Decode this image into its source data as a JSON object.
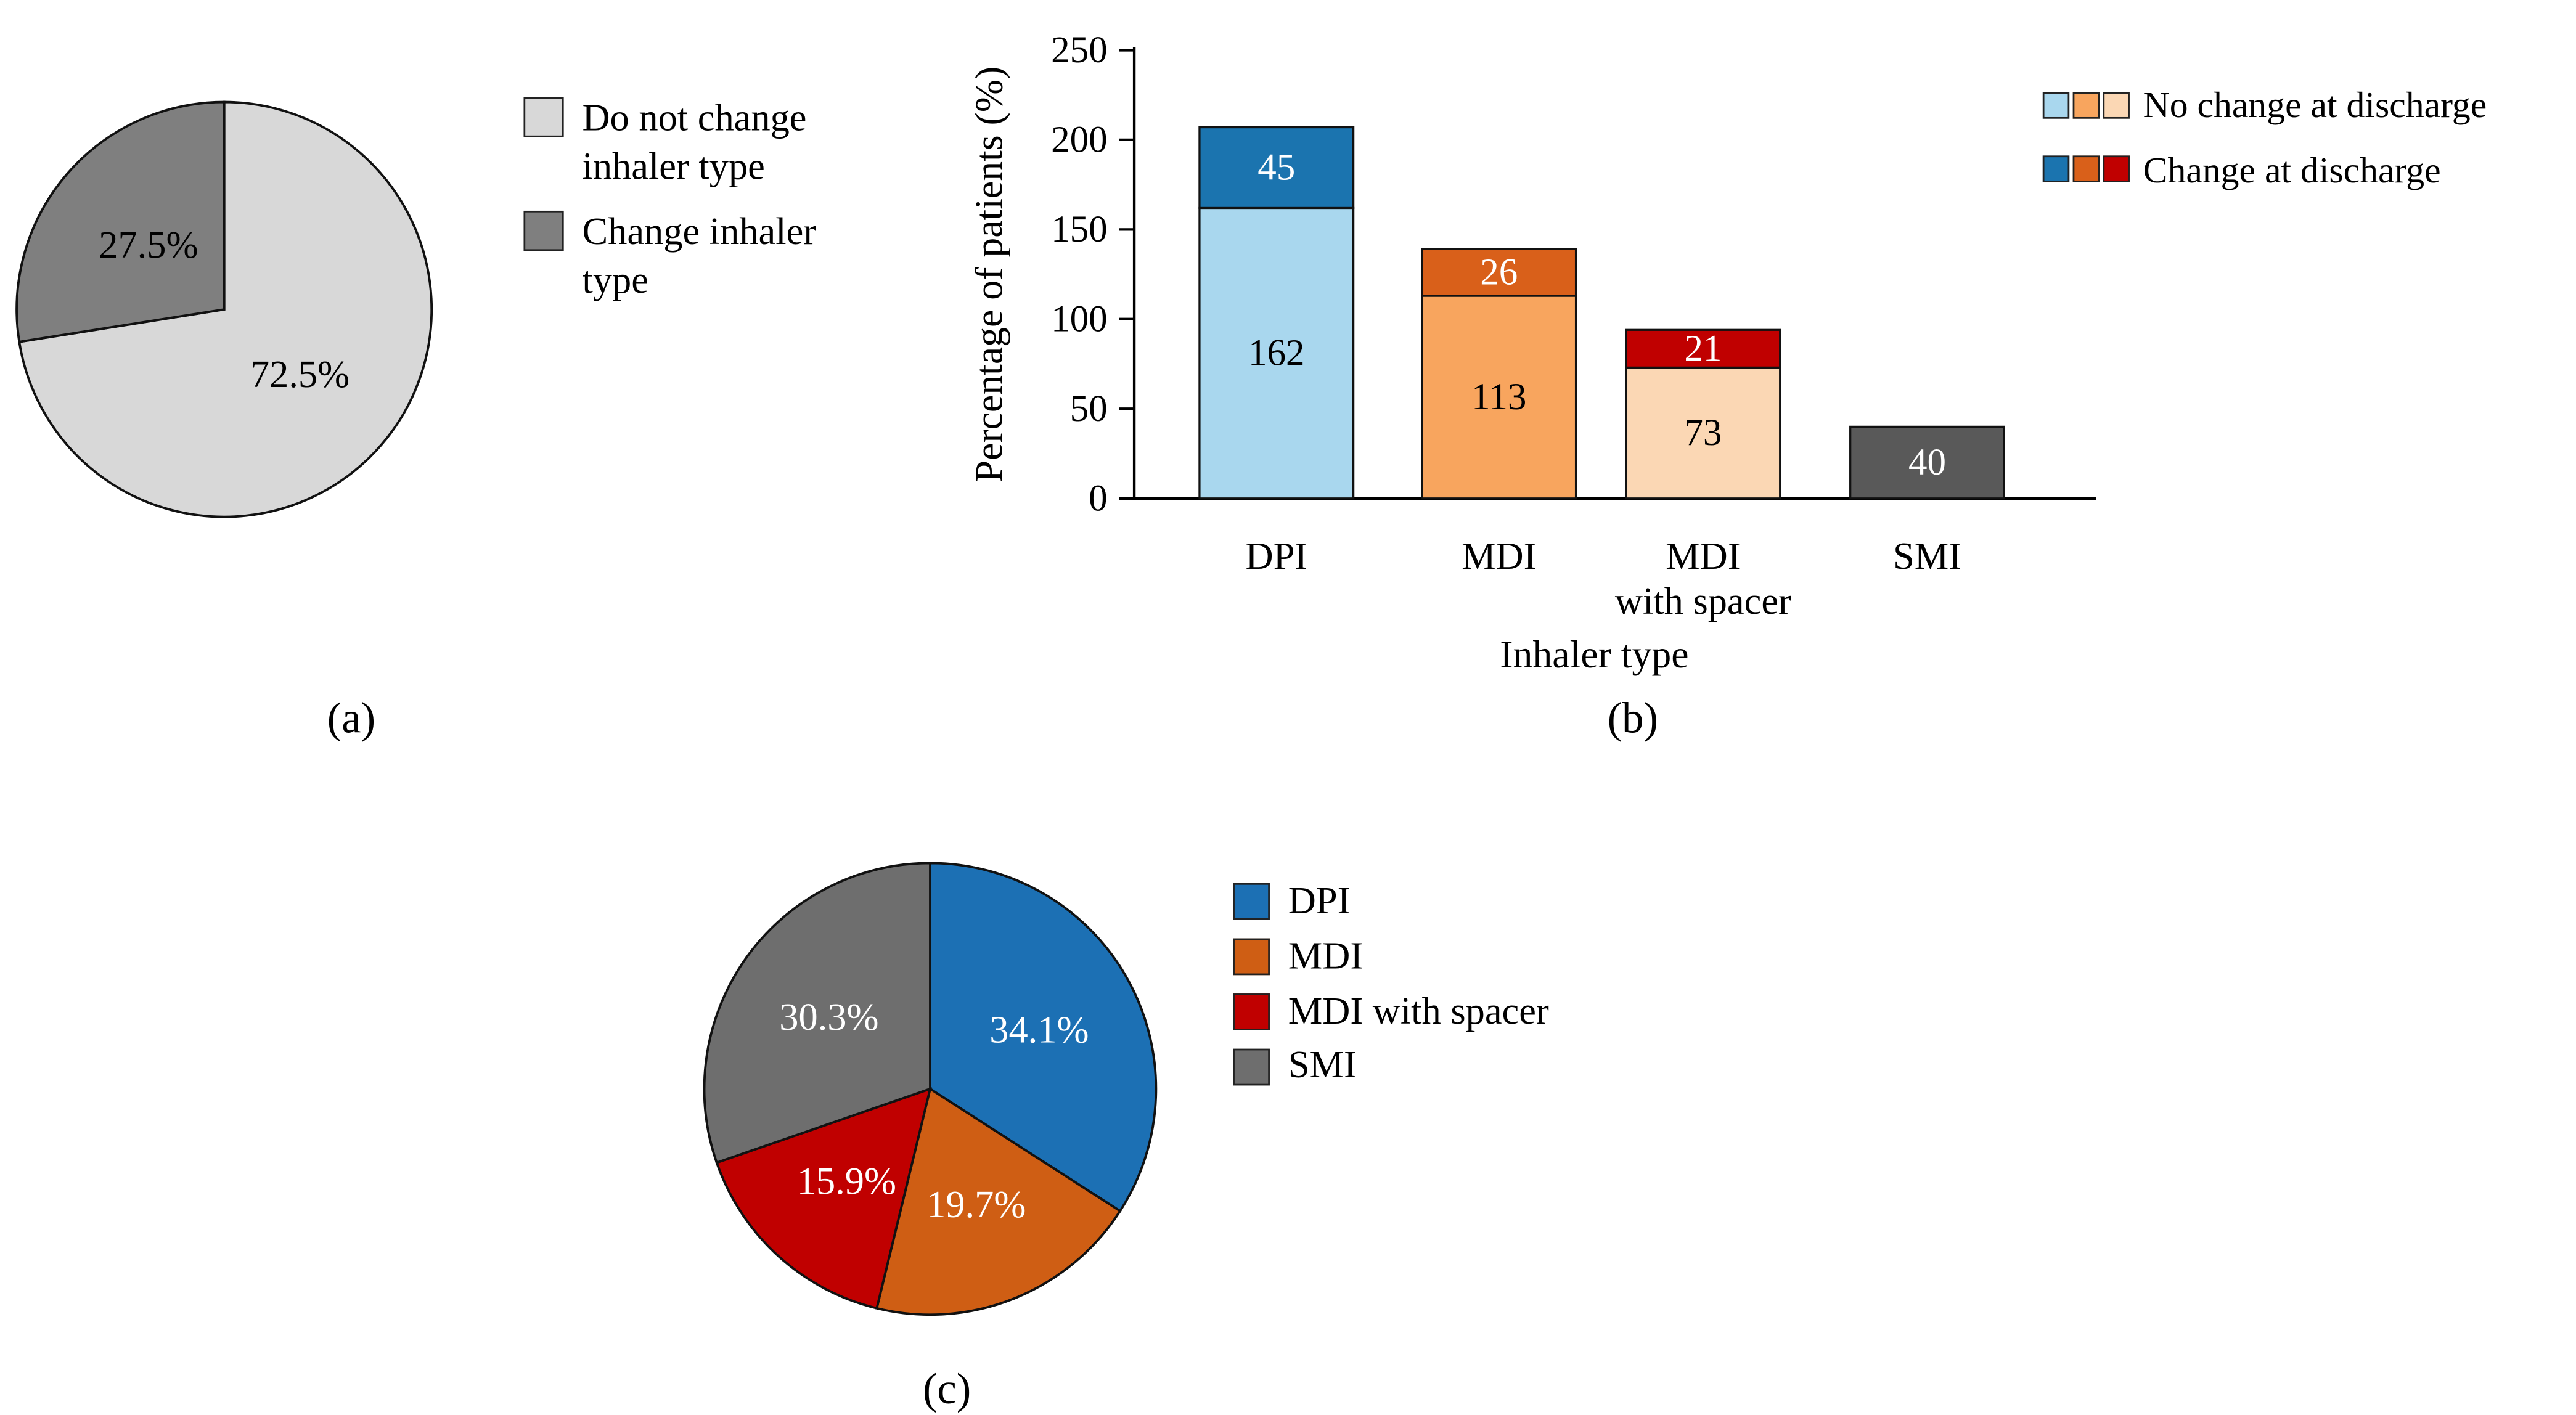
{
  "chart_data": [
    {
      "id": "panel-a",
      "type": "pie",
      "labels": [
        "Do not change inhaler type",
        "Change inhaler type"
      ],
      "values": [
        72.5,
        27.5
      ],
      "value_labels": [
        "72.5%",
        "27.5%"
      ],
      "colors": [
        "#d8d8d8",
        "#7f7f7f"
      ],
      "start_angle": "top",
      "direction": "clockwise",
      "legend_position": "right",
      "panel_label": "(a)"
    },
    {
      "id": "panel-b",
      "type": "bar",
      "stacked": true,
      "categories": [
        "DPI",
        "MDI",
        "MDI\nwith spacer",
        "SMI"
      ],
      "series": [
        {
          "name": "No change at discharge",
          "values": [
            162,
            113,
            73,
            40
          ],
          "colors": [
            "#a9d7ee",
            "#f8a55e",
            "#fbd7b4",
            "#595959"
          ]
        },
        {
          "name": "Change at discharge",
          "values": [
            45,
            26,
            21,
            0
          ],
          "colors": [
            "#1b74af",
            "#d9601a",
            "#c00000",
            "#262626"
          ]
        }
      ],
      "xlabel": "Inhaler type",
      "ylabel": "Percentage of patients (%)",
      "ylim": [
        0,
        250
      ],
      "yticks": [
        0,
        50,
        100,
        150,
        200,
        250
      ],
      "grid": false,
      "legend_position": "top-right",
      "panel_label": "(b)"
    },
    {
      "id": "panel-c",
      "type": "pie",
      "labels": [
        "DPI",
        "MDI",
        "MDI with spacer",
        "SMI"
      ],
      "values": [
        34.1,
        19.7,
        15.9,
        30.3
      ],
      "value_labels": [
        "34.1%",
        "19.7%",
        "15.9%",
        "30.3%"
      ],
      "colors": [
        "#1c70b4",
        "#cf5e14",
        "#c00000",
        "#6e6e6e"
      ],
      "start_angle": "top",
      "direction": "clockwise",
      "legend_position": "right",
      "panel_label": "(c)"
    }
  ]
}
